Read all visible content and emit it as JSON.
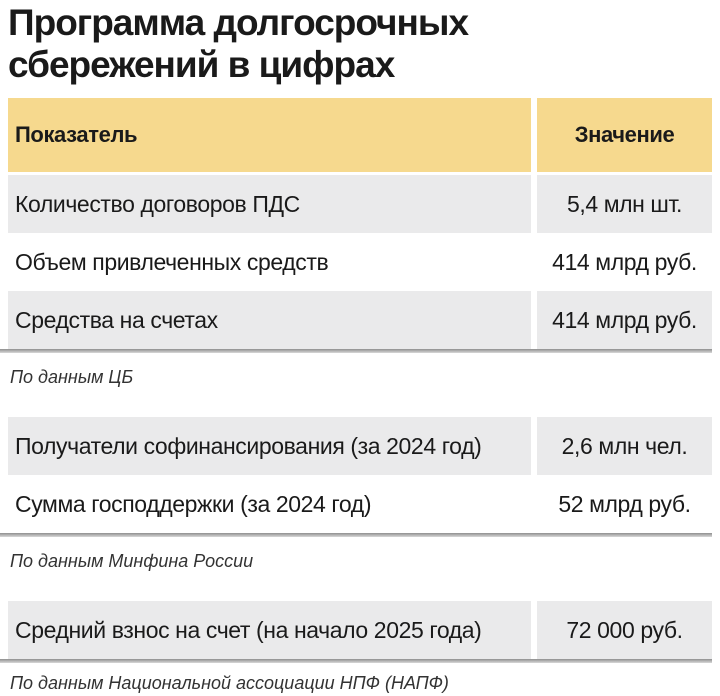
{
  "title": "Программа долгосрочных\nсбережений в цифрах",
  "table": {
    "header": {
      "indicator": "Показатель",
      "value": "Значение"
    },
    "sections": [
      {
        "rows": [
          {
            "indicator": "Количество договоров ПДС",
            "value": "5,4 млн шт."
          },
          {
            "indicator": "Объем привлеченных средств",
            "value": "414 млрд руб."
          },
          {
            "indicator": "Средства на счетах",
            "value": "414 млрд руб."
          }
        ],
        "source": "По данным ЦБ"
      },
      {
        "rows": [
          {
            "indicator": "Получатели софинансирования (за 2024 год)",
            "value": "2,6 млн чел."
          },
          {
            "indicator": "Сумма господдержки (за 2024 год)",
            "value": "52 млрд руб."
          }
        ],
        "source": "По данным Минфина России"
      },
      {
        "rows": [
          {
            "indicator": "Средний взнос на счет (на начало 2025 года)",
            "value": "72 000 руб."
          }
        ],
        "source": "По данным Национальной ассоциации НПФ (НАПФ)"
      }
    ]
  },
  "chart_data": {
    "type": "table",
    "title": "Программа долгосрочных сбережений в цифрах",
    "columns": [
      "Показатель",
      "Значение"
    ],
    "rows": [
      [
        "Количество договоров ПДС",
        "5,4 млн шт."
      ],
      [
        "Объем привлеченных средств",
        "414 млрд руб."
      ],
      [
        "Средства на счетах",
        "414 млрд руб."
      ],
      [
        "Получатели софинансирования (за 2024 год)",
        "2,6 млн чел."
      ],
      [
        "Сумма господдержки (за 2024 год)",
        "52 млрд руб."
      ],
      [
        "Средний взнос на счет (на начало 2025 года)",
        "72 000 руб."
      ]
    ],
    "sources": [
      "По данным ЦБ",
      "По данным Минфина России",
      "По данным Национальной ассоциации НПФ (НАПФ)"
    ],
    "layout_hints": {
      "header_fill": "#f6d98e",
      "striped_rows": true,
      "value_align": "center"
    }
  },
  "colors": {
    "header_bg": "#f6d98e",
    "row_alt_bg": "#eaeaeb",
    "separator_top": "#8f8f8f",
    "separator_bottom": "#d8d8d8",
    "text": "#1a1a1a",
    "source_text": "#333333"
  }
}
